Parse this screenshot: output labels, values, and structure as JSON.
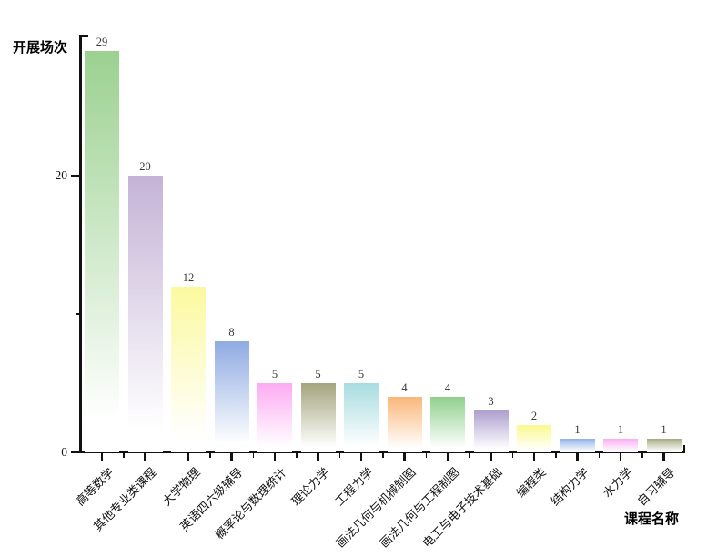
{
  "chart_data": {
    "type": "bar",
    "title": "",
    "ylabel": "开展场次",
    "xlabel": "课程名称",
    "categories": [
      "高等数学",
      "其他专业类课程",
      "大学物理",
      "英语四六级辅导",
      "概率论与数理统计",
      "理论力学",
      "工程力学",
      "画法几何与机械制图",
      "画法几何与工程制图",
      "电工与电子技术基础",
      "编程类",
      "结构力学",
      "水力学",
      "自习辅导"
    ],
    "values": [
      29,
      20,
      12,
      8,
      5,
      5,
      5,
      4,
      4,
      3,
      2,
      1,
      1,
      1
    ],
    "bar_value_labels": [
      "29",
      "20",
      "12",
      "8",
      "5",
      "5",
      "5",
      "4",
      "4",
      "3",
      "2",
      "1",
      "1",
      "1"
    ],
    "bar_colors": [
      "#9bd190",
      "#c5b3d6",
      "#fbf99e",
      "#8fabe2",
      "#fcabf2",
      "#a4a47e",
      "#a8dce0",
      "#f9b778",
      "#90d08d",
      "#af9fce",
      "#fbf98d",
      "#8fb0e6",
      "#fcaaf2",
      "#a6a982"
    ],
    "bar_gradient_fade_to": "#ffffff",
    "ylim": [
      0,
      30.2
    ],
    "yticks_major": [
      0,
      20
    ],
    "ytick_labels": [
      "0",
      "20"
    ],
    "yticks_minor": [
      10
    ],
    "grid": false,
    "legend": "none",
    "axis_color": "#111111"
  }
}
